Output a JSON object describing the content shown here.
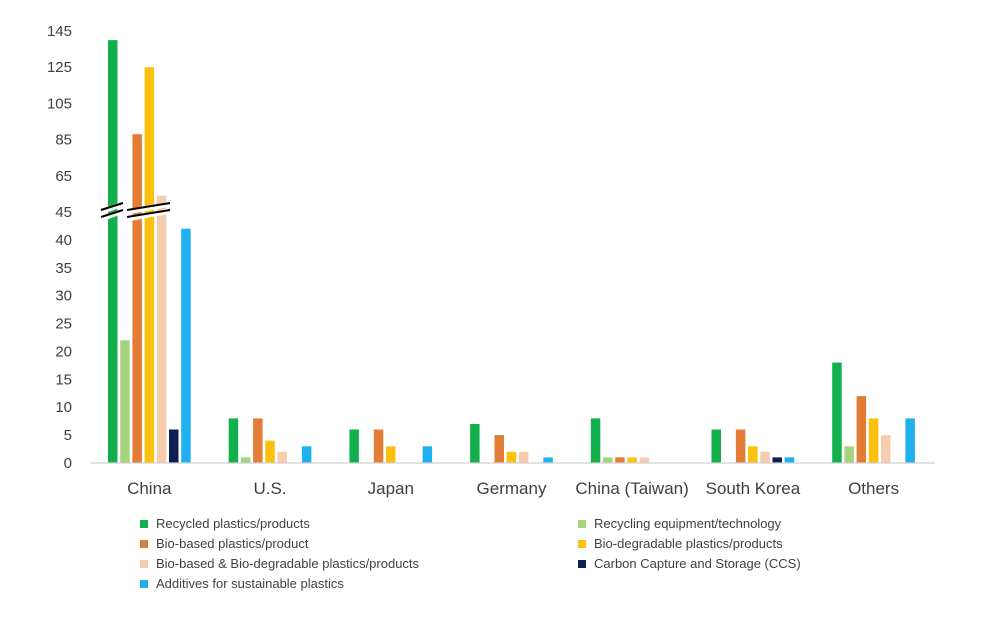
{
  "chart_data": {
    "type": "bar",
    "categories": [
      "China",
      "U.S.",
      "Japan",
      "Germany",
      "China (Taiwan)",
      "South Korea",
      "Others"
    ],
    "series": [
      {
        "name": "Recycled plastics/products",
        "color": "#12b04c",
        "values": [
          140,
          8,
          6,
          7,
          8,
          6,
          18
        ]
      },
      {
        "name": "Recycling equipment/technology",
        "color": "#a6d37d",
        "values": [
          22,
          1,
          0,
          0,
          1,
          0,
          3
        ]
      },
      {
        "name": "Bio-based plastics/product",
        "color": "#e37c36",
        "values": [
          88,
          8,
          6,
          5,
          1,
          6,
          12
        ]
      },
      {
        "name": "Bio-degradable plastics/products",
        "color": "#fbc10c",
        "values": [
          125,
          4,
          3,
          2,
          1,
          3,
          8
        ]
      },
      {
        "name": "Bio-based & Bio-degradable plastics/products",
        "color": "#f7cbad",
        "values": [
          54,
          2,
          0,
          2,
          1,
          2,
          5
        ]
      },
      {
        "name": "Carbon Capture and Storage (CCS)",
        "color": "#0c1f50",
        "values": [
          6,
          0,
          0,
          0,
          0,
          1,
          0
        ]
      },
      {
        "name": "Additives for sustainable plastics",
        "color": "#1fb1ef",
        "values": [
          42,
          3,
          3,
          1,
          0,
          1,
          8
        ]
      }
    ],
    "y_ticks": [
      "0",
      "5",
      "10",
      "15",
      "20",
      "25",
      "30",
      "35",
      "40",
      "45",
      "65",
      "85",
      "105",
      "125",
      "145"
    ],
    "ylim": [
      0,
      145
    ],
    "axis_break": [
      45,
      45
    ],
    "scale_lower": {
      "range": [
        0,
        45
      ]
    },
    "scale_upper": {
      "range": [
        45,
        145
      ]
    },
    "legend_position": "bottom",
    "grid": false
  }
}
